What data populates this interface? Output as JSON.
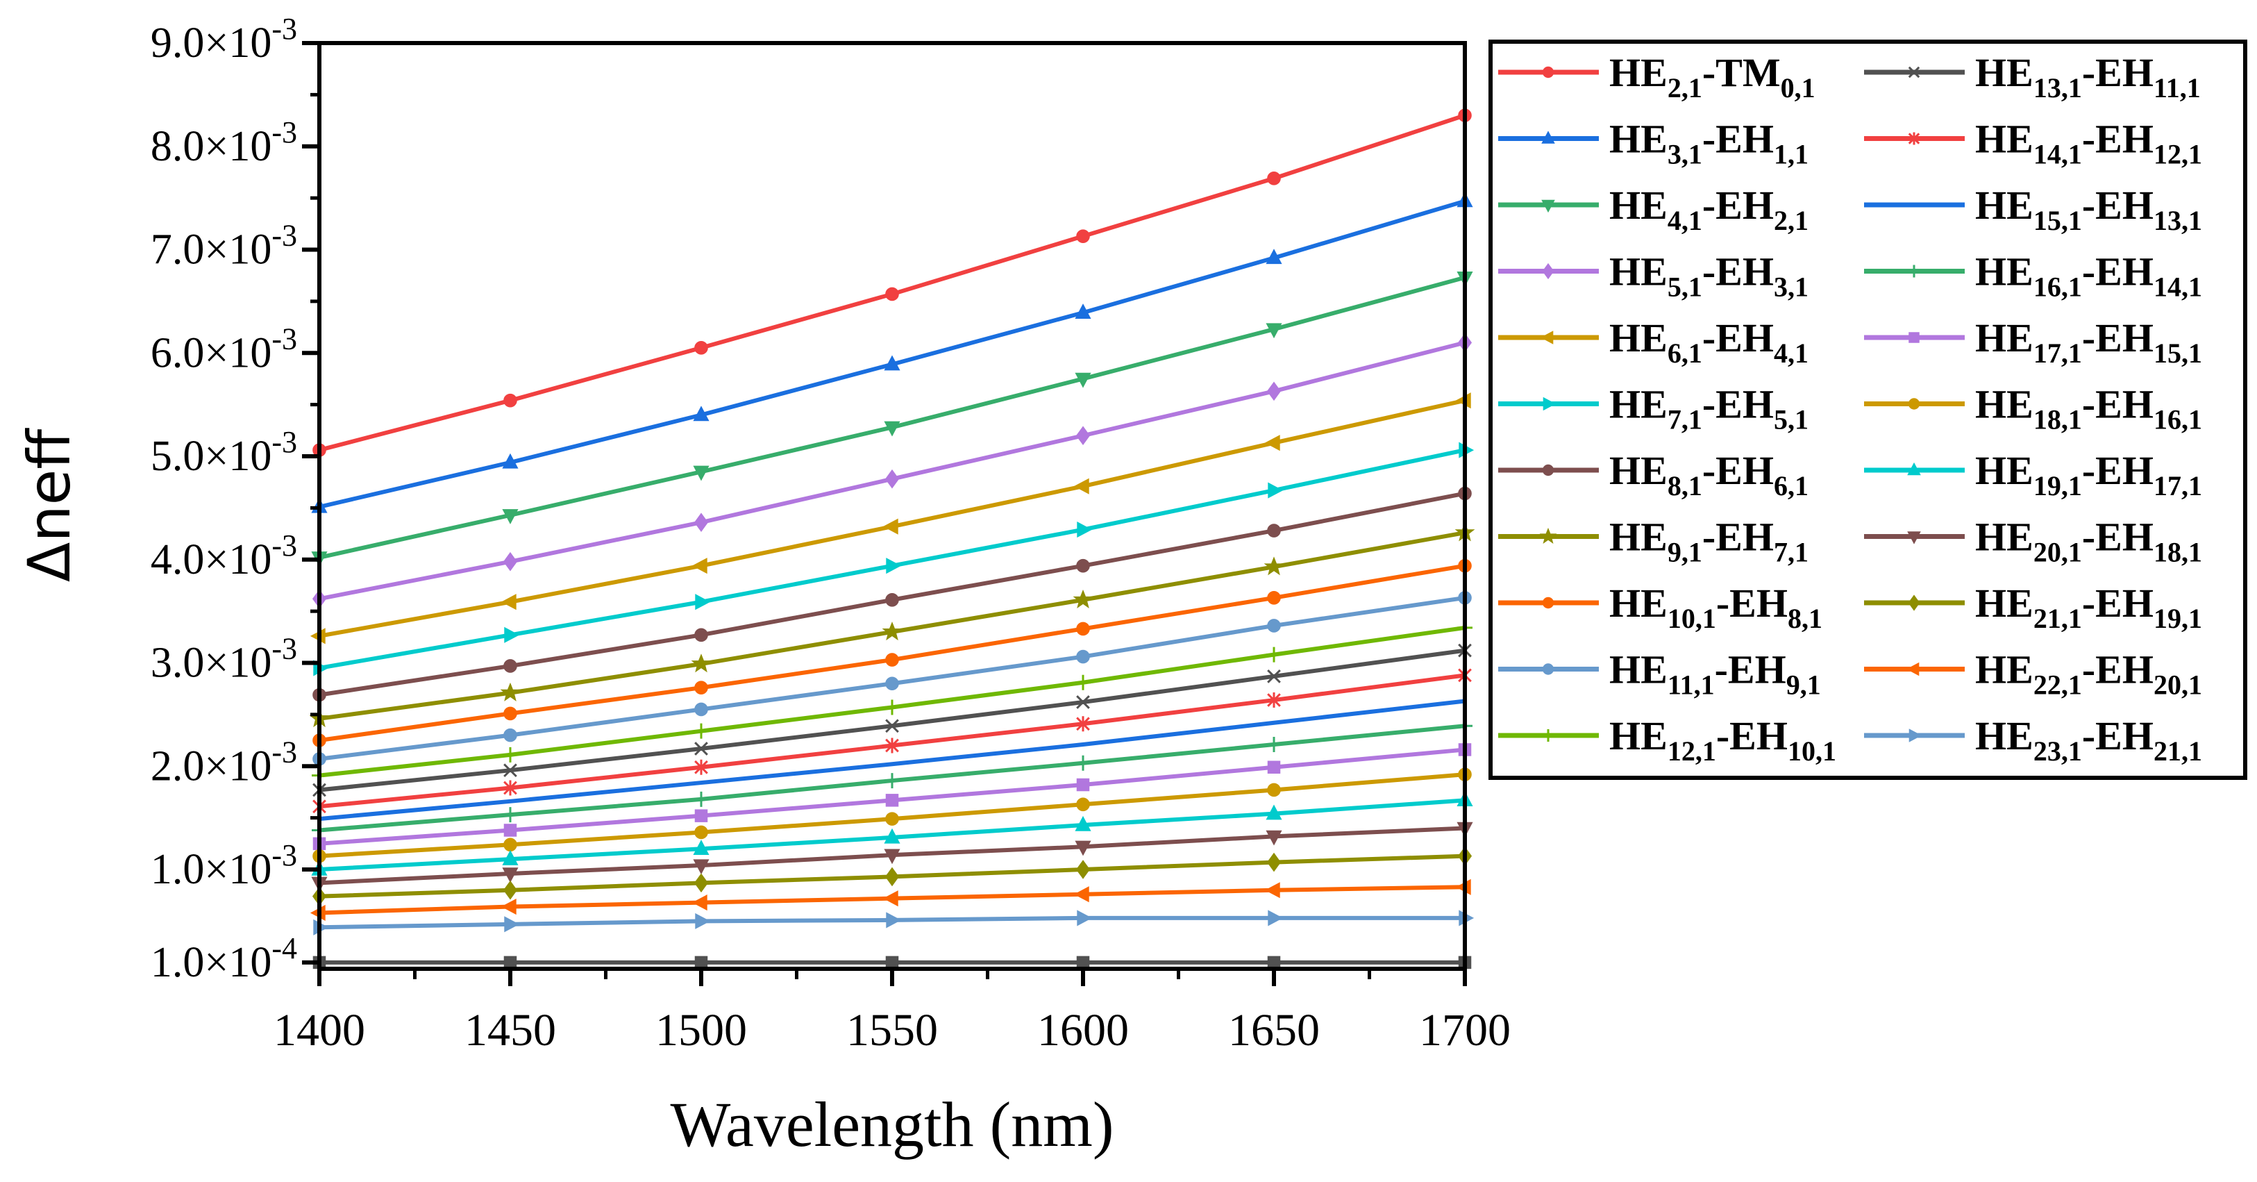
{
  "chart_data": {
    "type": "line",
    "title": "",
    "xlabel": "Wavelength (nm)",
    "ylabel": "Δneff",
    "xlim": [
      1400,
      1700
    ],
    "ylim": [
      0.0001,
      0.009
    ],
    "x": [
      1400,
      1450,
      1500,
      1550,
      1600,
      1650,
      1700
    ],
    "x_ticks": [
      "1400",
      "1450",
      "1500",
      "1550",
      "1600",
      "1650",
      "1700"
    ],
    "y_ticks": [
      {
        "value": 0.009,
        "mantissa": "9.0×10",
        "exp": "-3"
      },
      {
        "value": 0.008,
        "mantissa": "8.0×10",
        "exp": "-3"
      },
      {
        "value": 0.007,
        "mantissa": "7.0×10",
        "exp": "-3"
      },
      {
        "value": 0.006,
        "mantissa": "6.0×10",
        "exp": "-3"
      },
      {
        "value": 0.005,
        "mantissa": "5.0×10",
        "exp": "-3"
      },
      {
        "value": 0.004,
        "mantissa": "4.0×10",
        "exp": "-3"
      },
      {
        "value": 0.003,
        "mantissa": "3.0×10",
        "exp": "-3"
      },
      {
        "value": 0.002,
        "mantissa": "2.0×10",
        "exp": "-3"
      },
      {
        "value": 0.001,
        "mantissa": "1.0×10",
        "exp": "-3"
      },
      {
        "value": 0.0001,
        "mantissa": "1.0×10",
        "exp": "-4"
      }
    ],
    "grid": false,
    "legend_placement": "outside-right",
    "series": [
      {
        "name": [
          "HE",
          "2,1",
          "-TM",
          "0,1"
        ],
        "color": "#F14040",
        "marker": "circle",
        "values": [
          0.00506,
          0.00554,
          0.00605,
          0.00657,
          0.00713,
          0.00769,
          0.0083
        ]
      },
      {
        "name": [
          "HE",
          "3,1",
          "-EH",
          "1,1"
        ],
        "color": "#1A6FDF",
        "marker": "triangle-up",
        "values": [
          0.00451,
          0.00494,
          0.0054,
          0.00589,
          0.00639,
          0.00692,
          0.00747
        ]
      },
      {
        "name": [
          "HE",
          "4,1",
          "-EH",
          "2,1"
        ],
        "color": "#37AD6B",
        "marker": "triangle-down",
        "values": [
          0.00402,
          0.00443,
          0.00485,
          0.00528,
          0.00575,
          0.00623,
          0.00673
        ]
      },
      {
        "name": [
          "HE",
          "5,1",
          "-EH",
          "3,1"
        ],
        "color": "#B177DE",
        "marker": "diamond",
        "values": [
          0.00362,
          0.00398,
          0.00436,
          0.00478,
          0.0052,
          0.00563,
          0.0061
        ]
      },
      {
        "name": [
          "HE",
          "6,1",
          "-EH",
          "4,1"
        ],
        "color": "#CC9900",
        "marker": "triangle-left",
        "values": [
          0.00326,
          0.00359,
          0.00394,
          0.00432,
          0.00471,
          0.00513,
          0.00554
        ]
      },
      {
        "name": [
          "HE",
          "7,1",
          "-EH",
          "5,1"
        ],
        "color": "#00CBCC",
        "marker": "triangle-right",
        "values": [
          0.00295,
          0.00327,
          0.00359,
          0.00394,
          0.00429,
          0.00467,
          0.00506
        ]
      },
      {
        "name": [
          "HE",
          "8,1",
          "-EH",
          "6,1"
        ],
        "color": "#7D4E4E",
        "marker": "circle",
        "values": [
          0.00269,
          0.00297,
          0.00327,
          0.00361,
          0.00394,
          0.00428,
          0.00464
        ]
      },
      {
        "name": [
          "HE",
          "9,1",
          "-EH",
          "7,1"
        ],
        "color": "#8E8E00",
        "marker": "star",
        "values": [
          0.00246,
          0.00271,
          0.00299,
          0.0033,
          0.00361,
          0.00393,
          0.00426
        ]
      },
      {
        "name": [
          "HE",
          "10,1",
          "-EH",
          "8,1"
        ],
        "color": "#FB6501",
        "marker": "circle",
        "values": [
          0.00225,
          0.00251,
          0.00276,
          0.00303,
          0.00333,
          0.00363,
          0.00394
        ]
      },
      {
        "name": [
          "HE",
          "11,1",
          "-EH",
          "9,1"
        ],
        "color": "#6699CC",
        "marker": "circle",
        "values": [
          0.00207,
          0.0023,
          0.00255,
          0.0028,
          0.00306,
          0.00336,
          0.00363
        ]
      },
      {
        "name": [
          "HE",
          "12,1",
          "-EH",
          "10,1"
        ],
        "color": "#6FB802",
        "marker": "plus",
        "values": [
          0.00191,
          0.00211,
          0.00234,
          0.00257,
          0.00281,
          0.00308,
          0.00334
        ]
      },
      {
        "name": [
          "HE",
          "13,1",
          "-EH",
          "11,1"
        ],
        "color": "#515151",
        "marker": "cross",
        "values": [
          0.00177,
          0.00196,
          0.00217,
          0.00239,
          0.00262,
          0.00287,
          0.00312
        ]
      },
      {
        "name": [
          "HE",
          "14,1",
          "-EH",
          "12,1"
        ],
        "color": "#F14040",
        "marker": "asterisk",
        "values": [
          0.00161,
          0.00179,
          0.00199,
          0.0022,
          0.00241,
          0.00264,
          0.00288
        ]
      },
      {
        "name": [
          "HE",
          "15,1",
          "-EH",
          "13,1"
        ],
        "color": "#1A6FDF",
        "marker": "none",
        "values": [
          0.00149,
          0.00166,
          0.00184,
          0.00202,
          0.00221,
          0.00242,
          0.00263
        ]
      },
      {
        "name": [
          "HE",
          "16,1",
          "-EH",
          "14,1"
        ],
        "color": "#37AD6B",
        "marker": "plus",
        "values": [
          0.00138,
          0.00153,
          0.00168,
          0.00186,
          0.00203,
          0.00221,
          0.00239
        ]
      },
      {
        "name": [
          "HE",
          "17,1",
          "-EH",
          "15,1"
        ],
        "color": "#B177DE",
        "marker": "square",
        "values": [
          0.00125,
          0.00138,
          0.00152,
          0.00167,
          0.00182,
          0.00199,
          0.00216
        ]
      },
      {
        "name": [
          "HE",
          "18,1",
          "-EH",
          "16,1"
        ],
        "color": "#CC9900",
        "marker": "circle",
        "values": [
          0.00113,
          0.00124,
          0.00136,
          0.00149,
          0.00163,
          0.00177,
          0.00192
        ]
      },
      {
        "name": [
          "HE",
          "19,1",
          "-EH",
          "17,1"
        ],
        "color": "#00CBCC",
        "marker": "triangle-up",
        "values": [
          0.001,
          0.0011,
          0.0012,
          0.00131,
          0.00143,
          0.00154,
          0.00167
        ]
      },
      {
        "name": [
          "HE",
          "20,1",
          "-EH",
          "18,1"
        ],
        "color": "#7D4E4E",
        "marker": "triangle-down",
        "values": [
          0.00087,
          0.00096,
          0.00104,
          0.00114,
          0.00122,
          0.00132,
          0.0014
        ]
      },
      {
        "name": [
          "HE",
          "21,1",
          "-EH",
          "19,1"
        ],
        "color": "#8E8E00",
        "marker": "diamond",
        "values": [
          0.00074,
          0.0008,
          0.00087,
          0.00093,
          0.001,
          0.00107,
          0.00113
        ]
      },
      {
        "name": [
          "HE",
          "22,1",
          "-EH",
          "20,1"
        ],
        "color": "#FB6501",
        "marker": "triangle-left",
        "values": [
          0.00058,
          0.00064,
          0.00068,
          0.00072,
          0.00076,
          0.0008,
          0.00083
        ]
      },
      {
        "name": [
          "HE",
          "23,1",
          "-EH",
          "21,1"
        ],
        "color": "#6699CC",
        "marker": "triangle-right",
        "values": [
          0.00044,
          0.00047,
          0.0005,
          0.00051,
          0.00053,
          0.00053,
          0.00053
        ]
      },
      {
        "name": null,
        "color": "#515151",
        "marker": "square",
        "values": [
          0.0001,
          0.0001,
          0.0001,
          0.0001,
          0.0001,
          0.0001,
          0.0001
        ]
      }
    ]
  }
}
